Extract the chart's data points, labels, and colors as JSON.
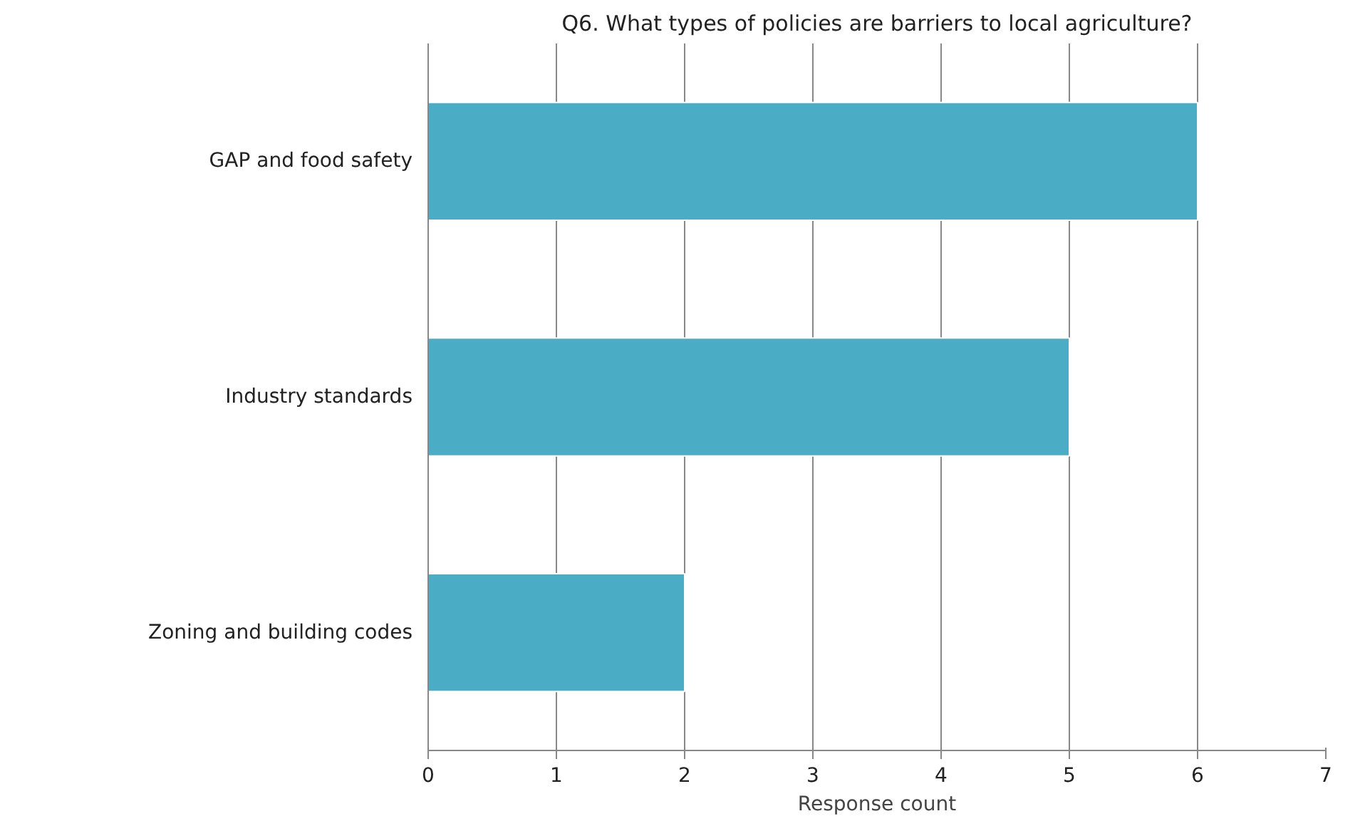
{
  "chart_data": {
    "type": "bar",
    "orientation": "horizontal",
    "title": "Q6. What types of policies are barriers to local agriculture?",
    "xlabel": "Response count",
    "categories": [
      "GAP and food safety",
      "Industry standards",
      "Zoning and building codes"
    ],
    "values": [
      6,
      5,
      2
    ],
    "color": "#4bacc6",
    "xlim": [
      0,
      7
    ],
    "xticks": [
      0,
      1,
      2,
      3,
      4,
      5,
      6,
      7
    ],
    "grid": "x"
  }
}
